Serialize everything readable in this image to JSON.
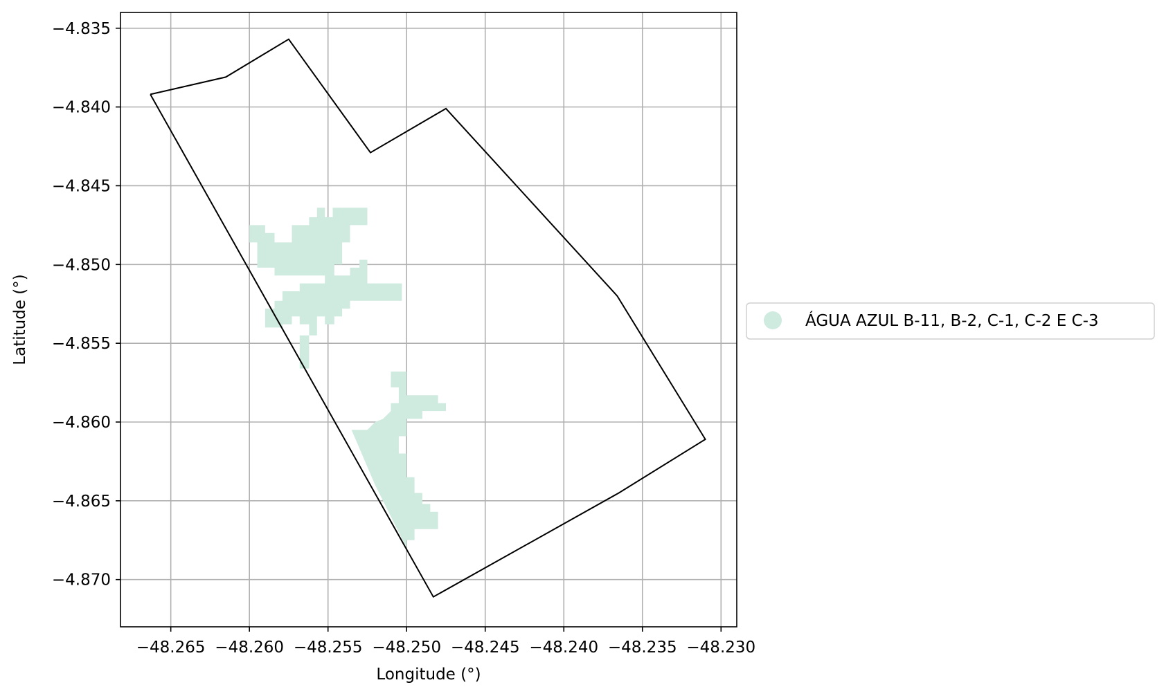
{
  "chart_data": {
    "type": "map",
    "xlabel": "Longitude (°)",
    "ylabel": "Latitude (°)",
    "xlim": [
      -48.2682,
      -48.229
    ],
    "ylim": [
      -4.873,
      -4.834
    ],
    "grid": true,
    "x_ticks": [
      {
        "value": -48.265,
        "label": "−48.265"
      },
      {
        "value": -48.26,
        "label": "−48.260"
      },
      {
        "value": -48.255,
        "label": "−48.255"
      },
      {
        "value": -48.25,
        "label": "−48.250"
      },
      {
        "value": -48.245,
        "label": "−48.245"
      },
      {
        "value": -48.24,
        "label": "−48.240"
      },
      {
        "value": -48.235,
        "label": "−48.235"
      },
      {
        "value": -48.23,
        "label": "−48.230"
      }
    ],
    "y_ticks": [
      {
        "value": -4.835,
        "label": "−4.835"
      },
      {
        "value": -4.84,
        "label": "−4.840"
      },
      {
        "value": -4.845,
        "label": "−4.845"
      },
      {
        "value": -4.85,
        "label": "−4.850"
      },
      {
        "value": -4.855,
        "label": "−4.855"
      },
      {
        "value": -4.86,
        "label": "−4.860"
      },
      {
        "value": -4.865,
        "label": "−4.865"
      },
      {
        "value": -4.87,
        "label": "−4.870"
      }
    ],
    "boundary": {
      "stroke": "#000000",
      "points": [
        [
          -48.2663,
          -4.8392
        ],
        [
          -48.2615,
          -4.8381
        ],
        [
          -48.2575,
          -4.8357
        ],
        [
          -48.2523,
          -4.8429
        ],
        [
          -48.2475,
          -4.8401
        ],
        [
          -48.2366,
          -4.852
        ],
        [
          -48.231,
          -4.8611
        ],
        [
          -48.2365,
          -4.8645
        ],
        [
          -48.2483,
          -4.8711
        ],
        [
          -48.2663,
          -4.8392
        ]
      ]
    },
    "legend": {
      "position": "right",
      "entries": [
        {
          "label": "ÁGUA AZUL B-11, B-2, C-1, C-2 E C-3",
          "color": "#cfeadf"
        }
      ]
    },
    "region_color": "#cfeadf",
    "regions": [
      {
        "name": "upper-cluster",
        "points": [
          [
            -48.26,
            -4.8475
          ],
          [
            -48.259,
            -4.8475
          ],
          [
            -48.259,
            -4.848
          ],
          [
            -48.2584,
            -4.848
          ],
          [
            -48.2584,
            -4.8486
          ],
          [
            -48.2573,
            -4.8486
          ],
          [
            -48.2573,
            -4.8475
          ],
          [
            -48.2562,
            -4.8475
          ],
          [
            -48.2562,
            -4.847
          ],
          [
            -48.2557,
            -4.847
          ],
          [
            -48.2557,
            -4.8464
          ],
          [
            -48.2552,
            -4.8464
          ],
          [
            -48.2552,
            -4.847
          ],
          [
            -48.2547,
            -4.847
          ],
          [
            -48.2547,
            -4.8464
          ],
          [
            -48.2525,
            -4.8464
          ],
          [
            -48.2525,
            -4.8475
          ],
          [
            -48.2536,
            -4.8475
          ],
          [
            -48.2536,
            -4.8486
          ],
          [
            -48.2541,
            -4.8486
          ],
          [
            -48.2541,
            -4.85
          ],
          [
            -48.2546,
            -4.85
          ],
          [
            -48.2546,
            -4.8507
          ],
          [
            -48.2536,
            -4.8507
          ],
          [
            -48.2536,
            -4.8502
          ],
          [
            -48.253,
            -4.8502
          ],
          [
            -48.253,
            -4.8497
          ],
          [
            -48.2525,
            -4.8497
          ],
          [
            -48.2525,
            -4.8512
          ],
          [
            -48.2503,
            -4.8512
          ],
          [
            -48.2503,
            -4.8523
          ],
          [
            -48.2536,
            -4.8523
          ],
          [
            -48.2536,
            -4.8528
          ],
          [
            -48.2541,
            -4.8528
          ],
          [
            -48.2541,
            -4.8533
          ],
          [
            -48.2546,
            -4.8533
          ],
          [
            -48.2546,
            -4.8538
          ],
          [
            -48.2552,
            -4.8538
          ],
          [
            -48.2552,
            -4.8533
          ],
          [
            -48.2557,
            -4.8533
          ],
          [
            -48.2557,
            -4.8545
          ],
          [
            -48.2562,
            -4.8545
          ],
          [
            -48.2562,
            -4.8566
          ],
          [
            -48.2568,
            -4.8566
          ],
          [
            -48.2568,
            -4.8545
          ],
          [
            -48.2562,
            -4.8545
          ],
          [
            -48.2562,
            -4.8538
          ],
          [
            -48.2568,
            -4.8538
          ],
          [
            -48.2568,
            -4.8533
          ],
          [
            -48.2573,
            -4.8533
          ],
          [
            -48.2573,
            -4.8538
          ],
          [
            -48.2579,
            -4.8538
          ],
          [
            -48.2579,
            -4.854
          ],
          [
            -48.259,
            -4.854
          ],
          [
            -48.259,
            -4.8528
          ],
          [
            -48.2584,
            -4.8528
          ],
          [
            -48.2584,
            -4.8523
          ],
          [
            -48.2579,
            -4.8523
          ],
          [
            -48.2579,
            -4.8517
          ],
          [
            -48.2568,
            -4.8517
          ],
          [
            -48.2568,
            -4.8512
          ],
          [
            -48.2552,
            -4.8512
          ],
          [
            -48.2552,
            -4.8507
          ],
          [
            -48.2584,
            -4.8507
          ],
          [
            -48.2584,
            -4.8502
          ],
          [
            -48.2595,
            -4.8502
          ],
          [
            -48.2595,
            -4.8486
          ],
          [
            -48.26,
            -4.8486
          ]
        ]
      },
      {
        "name": "lower-cluster",
        "points": [
          [
            -48.251,
            -4.8568
          ],
          [
            -48.25,
            -4.8568
          ],
          [
            -48.25,
            -4.8583
          ],
          [
            -48.248,
            -4.8583
          ],
          [
            -48.248,
            -4.8588
          ],
          [
            -48.2475,
            -4.8588
          ],
          [
            -48.2475,
            -4.8593
          ],
          [
            -48.249,
            -4.8593
          ],
          [
            -48.249,
            -4.8598
          ],
          [
            -48.25,
            -4.8598
          ],
          [
            -48.25,
            -4.8609
          ],
          [
            -48.2505,
            -4.8609
          ],
          [
            -48.2505,
            -4.862
          ],
          [
            -48.25,
            -4.862
          ],
          [
            -48.25,
            -4.8635
          ],
          [
            -48.2495,
            -4.8635
          ],
          [
            -48.2495,
            -4.8645
          ],
          [
            -48.249,
            -4.8645
          ],
          [
            -48.249,
            -4.8652
          ],
          [
            -48.2485,
            -4.8652
          ],
          [
            -48.2485,
            -4.8657
          ],
          [
            -48.248,
            -4.8657
          ],
          [
            -48.248,
            -4.8668
          ],
          [
            -48.2495,
            -4.8668
          ],
          [
            -48.2495,
            -4.8675
          ],
          [
            -48.25,
            -4.8675
          ],
          [
            -48.25,
            -4.868
          ],
          [
            -48.252,
            -4.864
          ],
          [
            -48.2535,
            -4.8605
          ],
          [
            -48.2525,
            -4.8605
          ],
          [
            -48.252,
            -4.86
          ],
          [
            -48.2515,
            -4.8598
          ],
          [
            -48.251,
            -4.8593
          ],
          [
            -48.251,
            -4.8588
          ],
          [
            -48.2505,
            -4.8588
          ],
          [
            -48.2505,
            -4.8578
          ],
          [
            -48.251,
            -4.8578
          ]
        ]
      }
    ]
  }
}
